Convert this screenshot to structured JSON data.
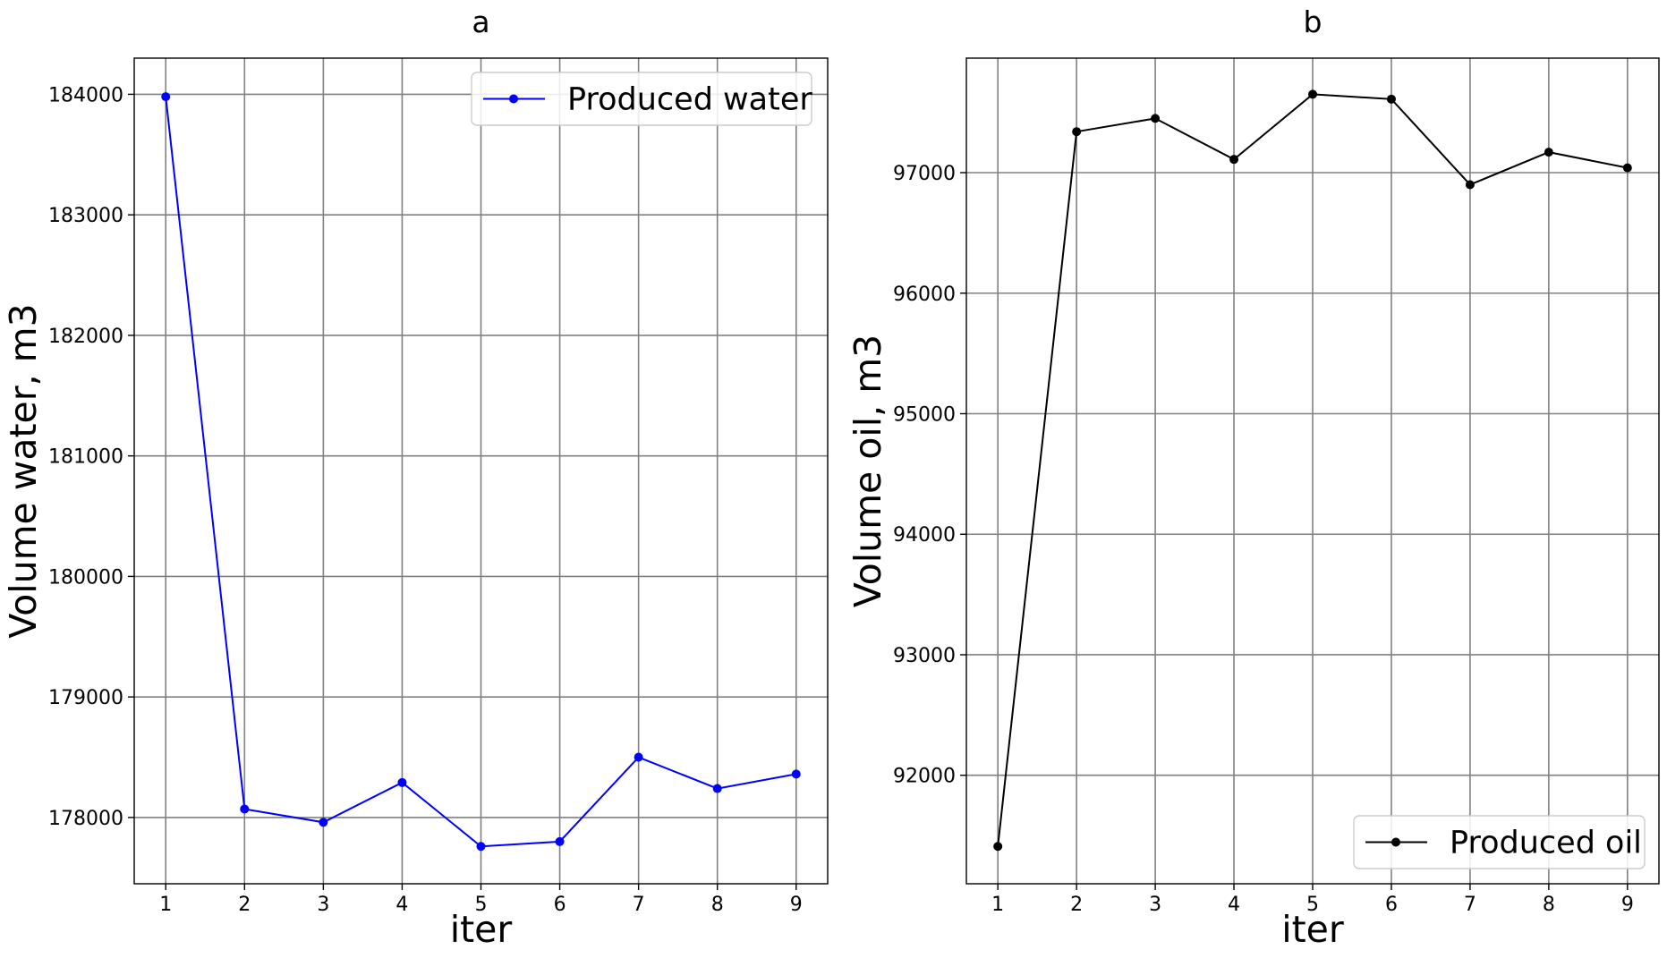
{
  "chart_data": [
    {
      "type": "line",
      "title": "a",
      "xlabel": "iter",
      "ylabel": "Volume water, m3",
      "x": [
        1,
        2,
        3,
        4,
        5,
        6,
        7,
        8,
        9
      ],
      "xlim": [
        0.6,
        9.4
      ],
      "ylim": [
        177450,
        184300
      ],
      "xticks": [
        "1",
        "2",
        "3",
        "4",
        "5",
        "6",
        "7",
        "8",
        "9"
      ],
      "yticks": [
        "178000",
        "179000",
        "180000",
        "181000",
        "182000",
        "183000",
        "184000"
      ],
      "grid": true,
      "legend_position": "upper right",
      "series": [
        {
          "name": "Produced water",
          "color": "#0000ff",
          "marker": "circle",
          "values": [
            183980,
            178070,
            177960,
            178290,
            177760,
            177800,
            178500,
            178240,
            178360
          ]
        }
      ]
    },
    {
      "type": "line",
      "title": "b",
      "xlabel": "iter",
      "ylabel": "Volume oil, m3",
      "x": [
        1,
        2,
        3,
        4,
        5,
        6,
        7,
        8,
        9
      ],
      "xlim": [
        0.6,
        9.4
      ],
      "ylim": [
        91100,
        97950
      ],
      "xticks": [
        "1",
        "2",
        "3",
        "4",
        "5",
        "6",
        "7",
        "8",
        "9"
      ],
      "yticks": [
        "92000",
        "93000",
        "94000",
        "95000",
        "96000",
        "97000"
      ],
      "grid": true,
      "legend_position": "lower right",
      "series": [
        {
          "name": "Produced oil",
          "color": "#000000",
          "marker": "circle",
          "values": [
            91410,
            97340,
            97450,
            97110,
            97650,
            97610,
            96900,
            97170,
            97040
          ]
        }
      ]
    }
  ]
}
